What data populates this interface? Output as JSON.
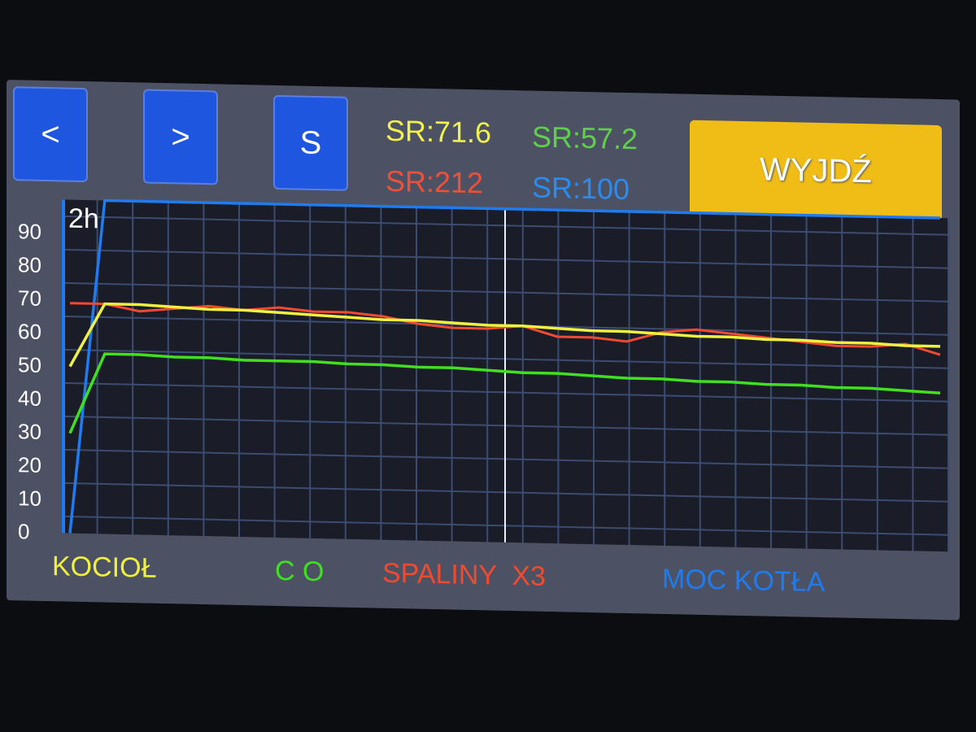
{
  "toolbar": {
    "prev_label": "<",
    "next_label": ">",
    "s_label": "S",
    "exit_label": "WYJDŹ"
  },
  "averages": [
    {
      "text": "SR:71.6",
      "color": "#f0f050"
    },
    {
      "text": "SR:57.2",
      "color": "#5fd04a"
    },
    {
      "text": "SR:212",
      "color": "#f0503a"
    },
    {
      "text": "SR:100",
      "color": "#2a8cf0"
    }
  ],
  "chart_data": {
    "type": "line",
    "title": "2h",
    "ylim": [
      0,
      100
    ],
    "yticks": [
      "0",
      "10",
      "20",
      "30",
      "40",
      "50",
      "60",
      "70",
      "80",
      "90"
    ],
    "grid": true,
    "legend_placement": "bottom",
    "x": [
      0,
      1,
      2,
      3,
      4,
      5,
      6,
      7,
      8,
      9,
      10,
      11,
      12,
      13,
      14,
      15,
      16,
      17,
      18,
      19,
      20,
      21,
      22,
      23,
      24,
      25
    ],
    "series": [
      {
        "name": "KOCIOŁ",
        "color": "#f0f040",
        "values": [
          50,
          69,
          69,
          68.5,
          68,
          68,
          67.5,
          67,
          66.5,
          66,
          66,
          65.5,
          65,
          65,
          64.5,
          64,
          64,
          63.5,
          63,
          63,
          62.5,
          62.5,
          62,
          62,
          61.5,
          61.5
        ]
      },
      {
        "name": "C O",
        "color": "#40e020",
        "values": [
          30,
          54,
          54,
          53.5,
          53.5,
          53,
          53,
          53,
          52.5,
          52.5,
          52,
          52,
          51.5,
          51,
          51,
          50.5,
          50,
          50,
          49.5,
          49.5,
          49,
          49,
          48.5,
          48.5,
          48,
          47.5
        ]
      },
      {
        "name": "SPALINY  X3",
        "color": "#f04a30",
        "values": [
          69,
          69,
          67,
          68,
          69,
          68,
          69,
          68,
          68,
          67,
          65,
          64,
          64,
          65,
          62,
          62,
          61,
          64,
          65,
          64,
          63,
          62,
          61,
          61,
          62,
          59
        ]
      },
      {
        "name": "MOC KOTŁA",
        "color": "#1e7cf0",
        "values": [
          0,
          100,
          100,
          100,
          100,
          100,
          100,
          100,
          100,
          100,
          100,
          100,
          100,
          100,
          100,
          100,
          100,
          100,
          100,
          100,
          100,
          100,
          100,
          100,
          100,
          100
        ]
      }
    ],
    "cursor_x": 12.5
  }
}
